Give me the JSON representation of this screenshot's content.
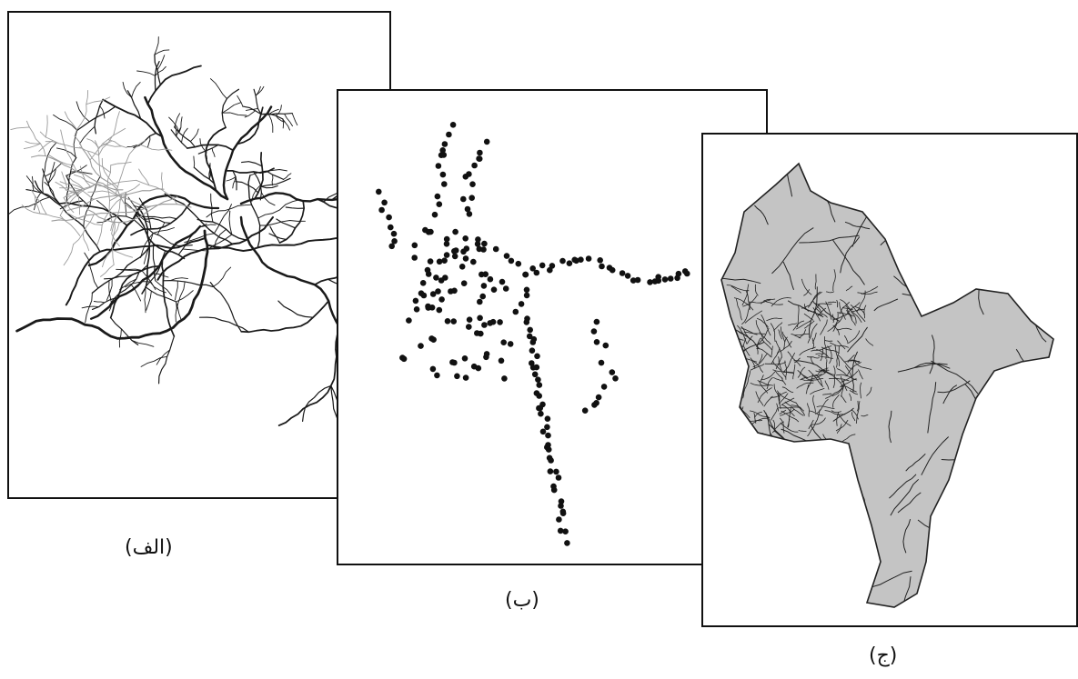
{
  "figure": {
    "panels": [
      {
        "id": "a",
        "caption": "(الف)",
        "content": "river-network",
        "line_color": "#1a1a1a",
        "faint_line_color": "#9a9a9a"
      },
      {
        "id": "b",
        "caption": "(ب)",
        "content": "point-samples",
        "point_color": "#111111"
      },
      {
        "id": "c",
        "caption": "(ج)",
        "content": "sub-basin-polygons",
        "fill_color": "#c4c4c4",
        "outline_color": "#222222"
      }
    ]
  }
}
